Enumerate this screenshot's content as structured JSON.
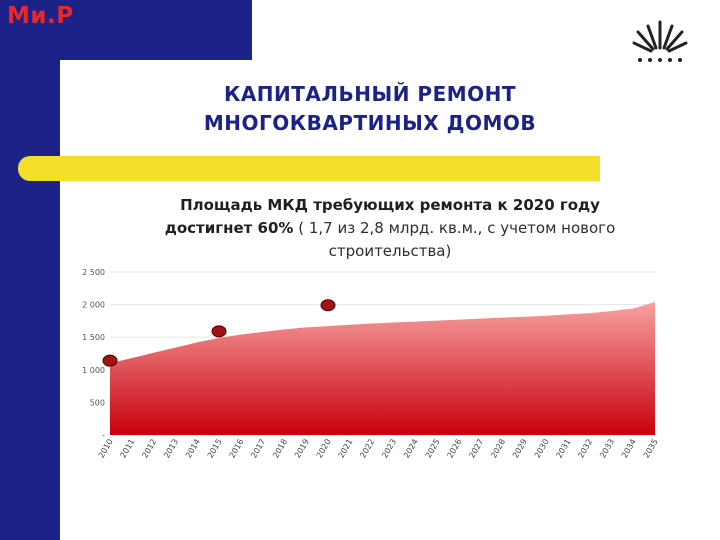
{
  "brand": {
    "text": "Ми.Р"
  },
  "logo": {
    "icon": "sunburst-logo-icon"
  },
  "title": {
    "line1": "КАПИТАЛЬНЫЙ РЕМОНТ",
    "line2": "МНОГОКВАРТИНЫХ ДОМОВ"
  },
  "subtitle": {
    "bold": "Площадь МКД требующих ремонта к 2020 году достигнет 60%",
    "normal": " ( 1,7 из 2,8 млрд. кв.м., с учетом нового строительства)"
  },
  "colors": {
    "navy": "#1c2287",
    "brand_red": "#e8282a",
    "yellow": "#f2df2a",
    "area_top": "#f7a1a1",
    "area_bottom": "#c8000c",
    "marker": "#a01414"
  },
  "chart_data": {
    "type": "area",
    "grid": true,
    "ylim": [
      0,
      2500
    ],
    "y_ticks": [
      "2 500",
      "2 000",
      "1 500",
      "1 000",
      "500",
      "-"
    ],
    "y_tick_values": [
      2500,
      2000,
      1500,
      1000,
      500,
      0
    ],
    "categories": [
      "2010",
      "2011",
      "2012",
      "2013",
      "2014",
      "2015",
      "2016",
      "2017",
      "2018",
      "2019",
      "2020",
      "2021",
      "2022",
      "2023",
      "2024",
      "2025",
      "2026",
      "2027",
      "2028",
      "2029",
      "2030",
      "2031",
      "2032",
      "2033",
      "2034",
      "2035"
    ],
    "values": [
      1100,
      1180,
      1260,
      1340,
      1420,
      1490,
      1540,
      1580,
      1620,
      1650,
      1670,
      1690,
      1710,
      1725,
      1740,
      1755,
      1770,
      1785,
      1800,
      1815,
      1830,
      1850,
      1870,
      1900,
      1940,
      2040
    ],
    "markers": [
      {
        "x": "2010",
        "y": 1140
      },
      {
        "x": "2015",
        "y": 1590
      },
      {
        "x": "2020",
        "y": 1990
      }
    ]
  }
}
